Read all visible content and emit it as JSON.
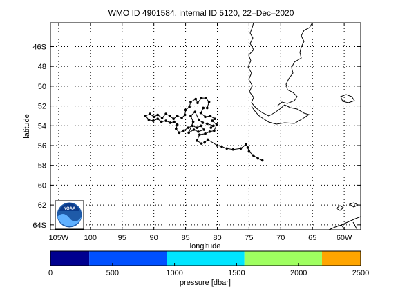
{
  "title": "WMO ID 4901584, internal ID 5120, 22–Dec–2020",
  "map": {
    "xlabel": "longitude",
    "ylabel": "latitude",
    "lon_range": [
      -106.3,
      -57.4
    ],
    "lat_range": [
      -64.5,
      -43.6
    ],
    "lon_ticks": [
      {
        "value": -105,
        "label": "105W"
      },
      {
        "value": -100,
        "label": "100"
      },
      {
        "value": -95,
        "label": "95"
      },
      {
        "value": -90,
        "label": "90"
      },
      {
        "value": -85,
        "label": "85"
      },
      {
        "value": -80,
        "label": "80"
      },
      {
        "value": -75,
        "label": "75"
      },
      {
        "value": -70,
        "label": "70"
      },
      {
        "value": -65,
        "label": "65"
      },
      {
        "value": -60,
        "label": "60W"
      }
    ],
    "lat_ticks": [
      {
        "value": -46,
        "label": "46S"
      },
      {
        "value": -48,
        "label": "48"
      },
      {
        "value": -50,
        "label": "50"
      },
      {
        "value": -52,
        "label": "52"
      },
      {
        "value": -54,
        "label": "54"
      },
      {
        "value": -56,
        "label": "56"
      },
      {
        "value": -58,
        "label": "58"
      },
      {
        "value": -60,
        "label": "60"
      },
      {
        "value": -62,
        "label": "62"
      },
      {
        "value": -64,
        "label": "64S"
      }
    ],
    "grid": true,
    "grid_style": "dotted",
    "logo": "noaa-logo",
    "logo_text": "NOAA"
  },
  "chart_data": {
    "type": "scatter",
    "marker_color": "#000000",
    "track": [
      [
        -72.9,
        -57.5
      ],
      [
        -73.6,
        -57.3
      ],
      [
        -74.3,
        -57.0
      ],
      [
        -75.0,
        -56.6
      ],
      [
        -75.2,
        -56.2
      ],
      [
        -75.5,
        -55.9
      ],
      [
        -76.3,
        -56.3
      ],
      [
        -77.5,
        -56.4
      ],
      [
        -78.5,
        -56.3
      ],
      [
        -79.3,
        -56.1
      ],
      [
        -80.0,
        -56.0
      ],
      [
        -81.5,
        -55.4
      ],
      [
        -82.0,
        -55.7
      ],
      [
        -82.5,
        -55.8
      ],
      [
        -83.2,
        -55.5
      ],
      [
        -82.8,
        -54.9
      ],
      [
        -81.9,
        -54.8
      ],
      [
        -81.2,
        -54.6
      ],
      [
        -80.5,
        -54.5
      ],
      [
        -80.1,
        -53.9
      ],
      [
        -80.8,
        -53.5
      ],
      [
        -80.4,
        -53.3
      ],
      [
        -81.1,
        -53.0
      ],
      [
        -81.9,
        -53.1
      ],
      [
        -82.6,
        -52.7
      ],
      [
        -82.2,
        -52.2
      ],
      [
        -81.6,
        -52.2
      ],
      [
        -81.3,
        -51.6
      ],
      [
        -81.8,
        -51.2
      ],
      [
        -82.5,
        -51.2
      ],
      [
        -83.1,
        -51.7
      ],
      [
        -83.4,
        -51.3
      ],
      [
        -84.2,
        -51.6
      ],
      [
        -84.4,
        -52.1
      ],
      [
        -85.0,
        -52.4
      ],
      [
        -85.1,
        -52.9
      ],
      [
        -85.6,
        -53.2
      ],
      [
        -86.3,
        -53.0
      ],
      [
        -86.9,
        -53.3
      ],
      [
        -87.5,
        -53.0
      ],
      [
        -88.1,
        -52.8
      ],
      [
        -88.7,
        -53.2
      ],
      [
        -89.4,
        -52.9
      ],
      [
        -90.0,
        -53.1
      ],
      [
        -90.6,
        -52.8
      ],
      [
        -91.3,
        -53.0
      ],
      [
        -90.8,
        -53.4
      ],
      [
        -90.1,
        -53.5
      ],
      [
        -89.4,
        -53.3
      ],
      [
        -88.8,
        -53.6
      ],
      [
        -88.1,
        -53.5
      ],
      [
        -87.4,
        -53.7
      ],
      [
        -86.8,
        -53.6
      ],
      [
        -86.3,
        -53.9
      ],
      [
        -86.5,
        -54.3
      ],
      [
        -86.0,
        -54.7
      ],
      [
        -85.3,
        -54.5
      ],
      [
        -84.6,
        -54.2
      ],
      [
        -83.9,
        -54.0
      ],
      [
        -83.2,
        -54.2
      ],
      [
        -82.6,
        -54.0
      ],
      [
        -82.1,
        -54.4
      ],
      [
        -83.0,
        -54.6
      ],
      [
        -83.7,
        -54.4
      ],
      [
        -84.5,
        -54.7
      ],
      [
        -83.8,
        -53.6
      ],
      [
        -84.2,
        -53.0
      ],
      [
        -83.5,
        -52.6
      ],
      [
        -82.9,
        -53.4
      ],
      [
        -82.3,
        -53.7
      ],
      [
        -81.6,
        -53.8
      ],
      [
        -80.6,
        -54.0
      ],
      [
        -81.0,
        -54.2
      ]
    ],
    "colorbar": {
      "label": "pressure [dbar]",
      "range": [
        0,
        2500
      ],
      "ticks": [
        {
          "value": 0,
          "label": "0"
        },
        {
          "value": 500,
          "label": "500"
        },
        {
          "value": 1000,
          "label": "1000"
        },
        {
          "value": 1500,
          "label": "1500"
        },
        {
          "value": 2000,
          "label": "2000"
        },
        {
          "value": 2500,
          "label": "2500"
        }
      ],
      "bands": [
        {
          "from": 0,
          "to": 313,
          "color": "#00008f"
        },
        {
          "from": 313,
          "to": 938,
          "color": "#0050ff"
        },
        {
          "from": 938,
          "to": 1563,
          "color": "#00e5ff"
        },
        {
          "from": 1563,
          "to": 2188,
          "color": "#9fff60"
        },
        {
          "from": 2188,
          "to": 2500,
          "color": "#ffa500"
        }
      ]
    }
  }
}
